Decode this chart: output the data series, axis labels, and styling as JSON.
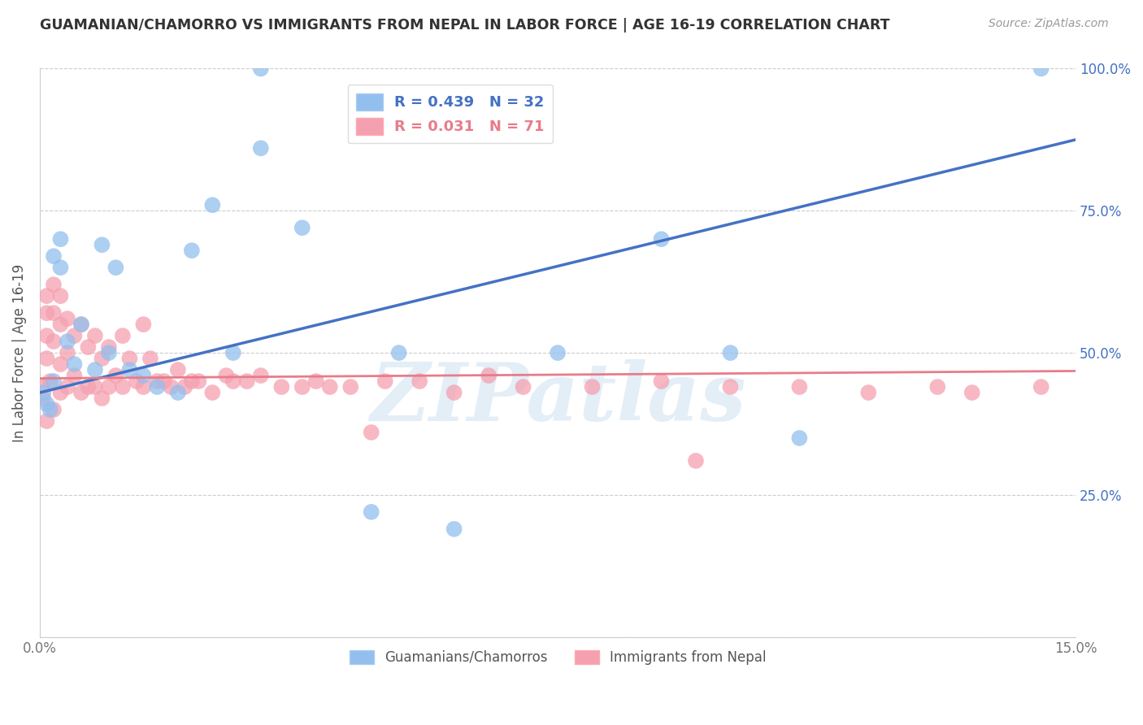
{
  "title": "GUAMANIAN/CHAMORRO VS IMMIGRANTS FROM NEPAL IN LABOR FORCE | AGE 16-19 CORRELATION CHART",
  "source": "Source: ZipAtlas.com",
  "ylabel": "In Labor Force | Age 16-19",
  "x_min": 0.0,
  "x_max": 0.15,
  "y_min": 0.0,
  "y_max": 1.0,
  "blue_R": 0.439,
  "blue_N": 32,
  "pink_R": 0.031,
  "pink_N": 71,
  "legend_label_blue": "Guamanians/Chamorros",
  "legend_label_pink": "Immigrants from Nepal",
  "blue_color": "#92BFEE",
  "pink_color": "#F5A0B0",
  "blue_line_color": "#4472C4",
  "pink_line_color": "#E87C8A",
  "watermark": "ZIPatlas",
  "blue_line_x": [
    0.0,
    0.15
  ],
  "blue_line_y": [
    0.43,
    0.875
  ],
  "pink_line_x": [
    0.0,
    0.15
  ],
  "pink_line_y": [
    0.455,
    0.468
  ],
  "blue_x": [
    0.0005,
    0.001,
    0.0015,
    0.002,
    0.002,
    0.003,
    0.003,
    0.004,
    0.005,
    0.006,
    0.008,
    0.009,
    0.01,
    0.011,
    0.013,
    0.015,
    0.017,
    0.02,
    0.022,
    0.025,
    0.028,
    0.032,
    0.038,
    0.048,
    0.06,
    0.075,
    0.09,
    0.1,
    0.11,
    0.032,
    0.145,
    0.052
  ],
  "blue_y": [
    0.43,
    0.41,
    0.4,
    0.45,
    0.67,
    0.7,
    0.65,
    0.52,
    0.48,
    0.55,
    0.47,
    0.69,
    0.5,
    0.65,
    0.47,
    0.46,
    0.44,
    0.43,
    0.68,
    0.76,
    0.5,
    0.86,
    0.72,
    0.22,
    0.19,
    0.5,
    0.7,
    0.5,
    0.35,
    1.0,
    1.0,
    0.5
  ],
  "pink_x": [
    0.0003,
    0.0005,
    0.001,
    0.001,
    0.001,
    0.001,
    0.001,
    0.0015,
    0.002,
    0.002,
    0.002,
    0.002,
    0.003,
    0.003,
    0.003,
    0.003,
    0.004,
    0.004,
    0.004,
    0.005,
    0.005,
    0.006,
    0.006,
    0.007,
    0.007,
    0.008,
    0.008,
    0.009,
    0.009,
    0.01,
    0.01,
    0.011,
    0.012,
    0.012,
    0.013,
    0.014,
    0.015,
    0.015,
    0.016,
    0.017,
    0.018,
    0.019,
    0.02,
    0.021,
    0.022,
    0.023,
    0.025,
    0.027,
    0.028,
    0.03,
    0.032,
    0.035,
    0.038,
    0.04,
    0.042,
    0.045,
    0.048,
    0.05,
    0.055,
    0.06,
    0.065,
    0.07,
    0.08,
    0.09,
    0.095,
    0.1,
    0.11,
    0.12,
    0.13,
    0.135,
    0.145
  ],
  "pink_y": [
    0.44,
    0.42,
    0.6,
    0.57,
    0.53,
    0.49,
    0.38,
    0.45,
    0.62,
    0.57,
    0.52,
    0.4,
    0.6,
    0.55,
    0.48,
    0.43,
    0.56,
    0.5,
    0.44,
    0.53,
    0.46,
    0.55,
    0.43,
    0.51,
    0.44,
    0.53,
    0.44,
    0.49,
    0.42,
    0.51,
    0.44,
    0.46,
    0.53,
    0.44,
    0.49,
    0.45,
    0.55,
    0.44,
    0.49,
    0.45,
    0.45,
    0.44,
    0.47,
    0.44,
    0.45,
    0.45,
    0.43,
    0.46,
    0.45,
    0.45,
    0.46,
    0.44,
    0.44,
    0.45,
    0.44,
    0.44,
    0.36,
    0.45,
    0.45,
    0.43,
    0.46,
    0.44,
    0.44,
    0.45,
    0.31,
    0.44,
    0.44,
    0.43,
    0.44,
    0.43,
    0.44
  ]
}
